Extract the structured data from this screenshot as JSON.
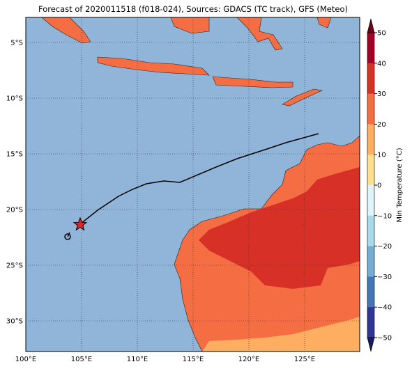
{
  "title": "Forecast of 2020011518 (f018-024), Sources: GDACS (TC track), GFS (Meteo)",
  "axes": {
    "x_labels": [
      "100°E",
      "105°E",
      "110°E",
      "115°E",
      "120°E",
      "125°E"
    ],
    "y_labels": [
      "5°S",
      "10°S",
      "15°S",
      "20°S",
      "25°S",
      "30°S"
    ]
  },
  "colorbar": {
    "title": "Min Temperature (°C)",
    "labels": [
      "50",
      "40",
      "30",
      "20",
      "10",
      "0",
      "−10",
      "−20",
      "−30",
      "−40",
      "−50"
    ]
  }
}
